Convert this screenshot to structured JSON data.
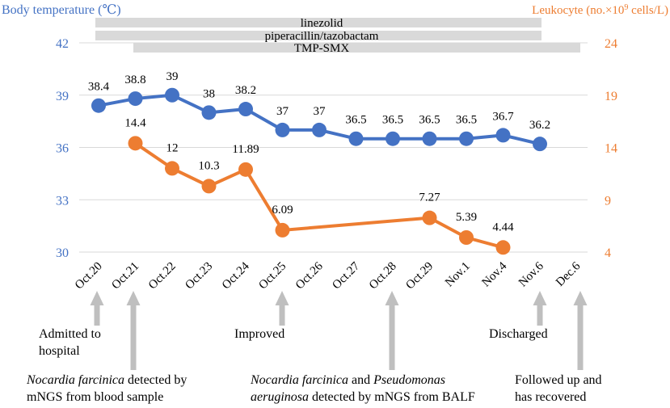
{
  "chart_data": {
    "type": "line",
    "categories": [
      "Oct.20",
      "Oct.21",
      "Oct.22",
      "Oct.23",
      "Oct.24",
      "Oct.25",
      "Oct.26",
      "Oct.27",
      "Oct.28",
      "Oct.29",
      "Nov.1",
      "Nov.4",
      "Nov.6",
      "Dec.6"
    ],
    "left_axis": {
      "label": "Body temperature (℃)",
      "ylim": [
        30,
        42
      ],
      "ticks": [
        "30",
        "33",
        "36",
        "39",
        "42"
      ]
    },
    "right_axis": {
      "label_main": "Leukocyte (no.×10",
      "label_sup": "9",
      "label_tail": " cells/L)",
      "ylim": [
        4,
        24
      ],
      "ticks": [
        "4",
        "9",
        "14",
        "19",
        "24"
      ]
    },
    "series": [
      {
        "name": "Body temperature",
        "axis": "left",
        "color": "#4472C4",
        "values": [
          38.4,
          38.8,
          39,
          38,
          38.2,
          37,
          37,
          36.5,
          36.5,
          36.5,
          36.5,
          36.7,
          36.2,
          null
        ],
        "labels": [
          "38.4",
          "38.8",
          "39",
          "38",
          "38.2",
          "37",
          "37",
          "36.5",
          "36.5",
          "36.5",
          "36.5",
          "36.7",
          "36.2",
          ""
        ]
      },
      {
        "name": "Leukocyte",
        "axis": "right",
        "color": "#ED7D31",
        "values": [
          null,
          14.4,
          12,
          10.3,
          11.89,
          6.09,
          null,
          null,
          null,
          7.27,
          5.39,
          4.44,
          null,
          null
        ],
        "labels": [
          "",
          "14.4",
          "12",
          "10.3",
          "11.89",
          "6.09",
          "",
          "",
          "",
          "7.27",
          "5.39",
          "4.44",
          "",
          ""
        ]
      }
    ],
    "treatments": [
      {
        "name": "linezolid",
        "start": 0,
        "end": 12
      },
      {
        "name": "piperacillin/tazobactam",
        "start": 0,
        "end": 12
      },
      {
        "name": "TMP-SMX",
        "start": 1,
        "end": 13
      }
    ],
    "events": [
      {
        "index": 0,
        "text_lines": [
          "Admitted to",
          "hospital"
        ]
      },
      {
        "index": 1,
        "italic": "Nocardia farcinica",
        "line1_rest": " detected by",
        "line2": "mNGS from blood sample"
      },
      {
        "index": 5,
        "text_lines": [
          "Improved"
        ]
      },
      {
        "index": 8,
        "italic1": "Nocardia farcinica",
        "mid": " and ",
        "italic2": "Pseudomonas",
        "line2_italic": "aeruginosa",
        "line2_rest": "  detected by mNGS from BALF"
      },
      {
        "index": 12,
        "text_lines": [
          "Discharged"
        ]
      },
      {
        "index": 13,
        "text_lines": [
          "Followed up and",
          "has recovered"
        ]
      }
    ],
    "colors": {
      "temperature": "#4472C4",
      "leukocyte": "#ED7D31",
      "arrow": "#BFBFBF",
      "grid": "#D9D9D9",
      "bar": "#D9D9D9"
    }
  }
}
